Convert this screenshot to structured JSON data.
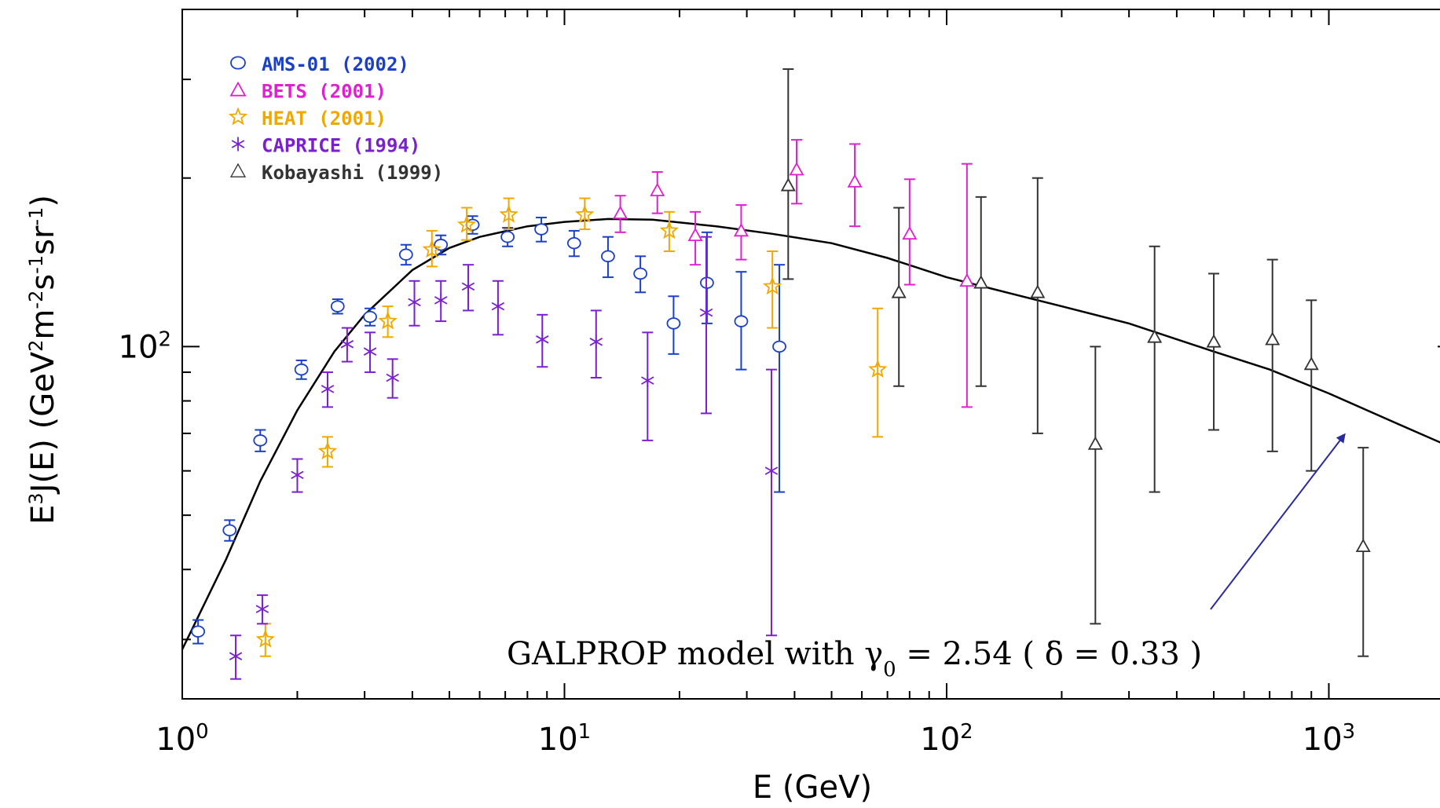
{
  "chart_data": {
    "type": "scatter",
    "xlabel": "E (GeV)",
    "ylabel_html": "E³J(E) (GeV²m⁻²s⁻¹sr⁻¹)",
    "ylabel_parts": {
      "e": "E",
      "e_exp": "3",
      "j": "J(E)  (GeV",
      "gev_exp": "2",
      "m": "m",
      "m_exp": "-2",
      "s": "s",
      "s_exp": "-1",
      "sr": "sr",
      "sr_exp": "-1",
      "close": ")"
    },
    "x_scale": "log",
    "y_scale": "log",
    "xlim": [
      1,
      3000
    ],
    "ylim": [
      23.5,
      400
    ],
    "x_ticks": [
      {
        "value": 1,
        "base": "10",
        "exp": "0"
      },
      {
        "value": 10,
        "base": "10",
        "exp": "1"
      },
      {
        "value": 100,
        "base": "10",
        "exp": "2"
      },
      {
        "value": 1000,
        "base": "10",
        "exp": "3"
      }
    ],
    "y_ticks": [
      {
        "value": 100,
        "base": "10",
        "exp": "2"
      }
    ],
    "y_minor_ticks": [
      30,
      40,
      50,
      60,
      70,
      80,
      90,
      200,
      300
    ],
    "legend_position": "top-left",
    "series": [
      {
        "name": "AMS-01 (2002)",
        "color": "#1a40c8",
        "marker": "circle",
        "points": [
          [
            1.1,
            31,
            1.5,
            1.5
          ],
          [
            1.33,
            47,
            2,
            2
          ],
          [
            1.6,
            68,
            3,
            3
          ],
          [
            2.05,
            91,
            3.5,
            3.5
          ],
          [
            2.55,
            118,
            3.5,
            3.5
          ],
          [
            3.1,
            113,
            4,
            4
          ],
          [
            3.85,
            146,
            6,
            6
          ],
          [
            4.75,
            152,
            6,
            6
          ],
          [
            5.75,
            165,
            6,
            6
          ],
          [
            7.1,
            157,
            6,
            6
          ],
          [
            8.7,
            162,
            8,
            8
          ],
          [
            10.6,
            153,
            8,
            8
          ],
          [
            13.0,
            145,
            12,
            12
          ],
          [
            15.8,
            135,
            10,
            10
          ],
          [
            19.3,
            110,
            13,
            13
          ],
          [
            23.6,
            130,
            20,
            30
          ],
          [
            29.0,
            111,
            20,
            25
          ],
          [
            36.5,
            100,
            45,
            40
          ]
        ]
      },
      {
        "name": "BETS (2001)",
        "color": "#e020d0",
        "marker": "triangle",
        "points": [
          [
            14.0,
            173,
            13,
            13
          ],
          [
            17.5,
            190,
            17,
            15
          ],
          [
            22.0,
            158,
            18,
            16
          ],
          [
            29.0,
            161,
            18,
            18
          ],
          [
            40.5,
            207,
            27,
            27
          ],
          [
            57.5,
            197,
            33,
            33
          ],
          [
            80.0,
            159,
            30,
            40
          ],
          [
            113.0,
            131,
            53,
            81
          ]
        ]
      },
      {
        "name": "HEAT (2001)",
        "color": "#f0a800",
        "marker": "star",
        "points": [
          [
            1.65,
            30,
            2,
            2
          ],
          [
            2.4,
            65,
            4,
            4
          ],
          [
            3.45,
            111,
            7,
            7
          ],
          [
            4.5,
            149,
            10,
            12
          ],
          [
            5.55,
            165,
            10,
            12
          ],
          [
            7.15,
            172,
            10,
            12
          ],
          [
            11.3,
            172,
            10,
            12
          ],
          [
            18.8,
            161,
            13,
            13
          ],
          [
            35.0,
            128,
            20,
            20
          ],
          [
            66.0,
            91,
            22,
            26
          ]
        ]
      },
      {
        "name": "CAPRICE (1994)",
        "color": "#7a20d0",
        "marker": "asterisk",
        "points": [
          [
            1.38,
            28,
            2.5,
            2.5
          ],
          [
            1.62,
            34,
            2,
            2
          ],
          [
            2.0,
            59,
            4,
            4
          ],
          [
            2.4,
            84,
            6,
            6
          ],
          [
            2.7,
            101,
            7,
            7
          ],
          [
            3.1,
            98,
            8,
            8
          ],
          [
            3.55,
            88,
            7,
            7
          ],
          [
            4.05,
            120,
            11,
            11
          ],
          [
            4.75,
            121,
            10,
            10
          ],
          [
            5.6,
            128,
            12,
            12
          ],
          [
            6.7,
            118,
            13,
            13
          ],
          [
            8.75,
            103,
            11,
            11
          ],
          [
            12.1,
            102,
            14,
            14
          ],
          [
            16.5,
            87,
            19,
            19
          ],
          [
            23.5,
            115,
            39,
            42
          ],
          [
            34.8,
            60,
            29.5,
            31
          ]
        ]
      },
      {
        "name": "Kobayashi (1999)",
        "color": "#333333",
        "marker": "triangle",
        "points": [
          [
            38.5,
            194,
            62,
            119
          ],
          [
            75.0,
            125,
            40,
            52
          ],
          [
            123.0,
            130,
            45,
            55
          ],
          [
            173.0,
            125,
            55,
            75
          ],
          [
            245.0,
            67,
            35,
            33
          ],
          [
            350.0,
            104,
            49,
            47
          ],
          [
            500.0,
            102,
            31,
            33
          ],
          [
            712.0,
            103,
            38,
            40
          ],
          [
            900.0,
            93,
            33,
            28
          ],
          [
            1230.0,
            44,
            16,
            22
          ]
        ]
      }
    ],
    "model_curve": {
      "name": "GALPROP model",
      "color": "#000000",
      "points": [
        [
          1.0,
          28.8
        ],
        [
          1.3,
          41.6
        ],
        [
          1.6,
          57.5
        ],
        [
          2.0,
          77.0
        ],
        [
          2.5,
          98.0
        ],
        [
          3.0,
          114.0
        ],
        [
          4.0,
          137.0
        ],
        [
          5.0,
          150.0
        ],
        [
          6.0,
          157.0
        ],
        [
          8.0,
          164.0
        ],
        [
          10.0,
          167.0
        ],
        [
          13.0,
          169.0
        ],
        [
          17.0,
          168.5
        ],
        [
          25.0,
          164.0
        ],
        [
          35.0,
          159.0
        ],
        [
          50.0,
          153.0
        ],
        [
          70.0,
          144.0
        ],
        [
          100.0,
          133.0
        ],
        [
          150.0,
          124.0
        ],
        [
          200.0,
          118.0
        ],
        [
          300.0,
          110.0
        ],
        [
          500.0,
          98.0
        ],
        [
          700.0,
          91.0
        ],
        [
          1000.0,
          82.5
        ],
        [
          1500.0,
          73.0
        ],
        [
          2000.0,
          67.0
        ],
        [
          3000.0,
          59.0
        ]
      ]
    },
    "annotation": {
      "text_prefix": "GALPROP model with γ",
      "subscript": "0",
      "text_suffix": " = 2.54 ( δ = 0.33 )",
      "arrow_color": "#2a2aa0"
    }
  }
}
